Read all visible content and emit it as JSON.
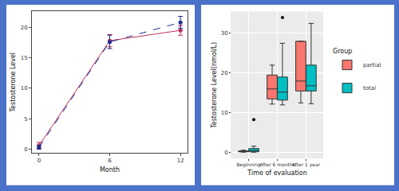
{
  "chart_data": [
    {
      "type": "line",
      "xlabel": "Month",
      "ylabel": "Testosterone Level",
      "x": [
        0,
        6,
        12
      ],
      "series": [
        {
          "color": "#c2305a",
          "line_style": "solid",
          "marker": "circle",
          "values": [
            0.6,
            17.8,
            19.5
          ],
          "errors": [
            0.5,
            1.0,
            0.8
          ]
        },
        {
          "color": "#1c2a8c",
          "line_style": "dashed",
          "marker": "circle",
          "values": [
            0.3,
            17.6,
            20.8
          ],
          "errors": [
            0.3,
            1.1,
            1.0
          ]
        }
      ],
      "xlim": [
        -0.6,
        12.6
      ],
      "xticks": [
        0,
        6,
        12
      ],
      "ylim": [
        -0.6,
        22.6
      ],
      "yticks": [
        0,
        5,
        10,
        15,
        20
      ],
      "grid": false
    },
    {
      "type": "box",
      "xlabel": "Time of evaluation",
      "ylabel": "Testosterone Level(nmol/L)",
      "legend_title": "Group",
      "legend": "right",
      "categories": [
        "Beginning",
        "After 6 months",
        "After 1 year"
      ],
      "series": [
        {
          "name": "partial",
          "color": "#f8766d",
          "lower": [
            0.1,
            12.2,
            12.5
          ],
          "q1": [
            0.2,
            13.5,
            15.5
          ],
          "median": [
            0.3,
            16.0,
            18.0
          ],
          "q3": [
            0.4,
            19.5,
            28.0
          ],
          "upper": [
            0.6,
            22.0,
            28.0
          ],
          "outliers": [
            [],
            [],
            []
          ]
        },
        {
          "name": "total",
          "color": "#00bfc4",
          "lower": [
            0.1,
            12.0,
            12.3
          ],
          "q1": [
            0.2,
            13.2,
            15.5
          ],
          "median": [
            0.5,
            15.2,
            16.8
          ],
          "q3": [
            1.0,
            19.0,
            22.0
          ],
          "upper": [
            1.6,
            27.5,
            32.5
          ],
          "outliers": [
            [
              8.3
            ],
            [
              34.0
            ],
            []
          ]
        }
      ],
      "ylim": [
        -1.5,
        35.5
      ],
      "yticks": [
        0,
        10,
        20,
        30
      ],
      "grid": true
    }
  ]
}
